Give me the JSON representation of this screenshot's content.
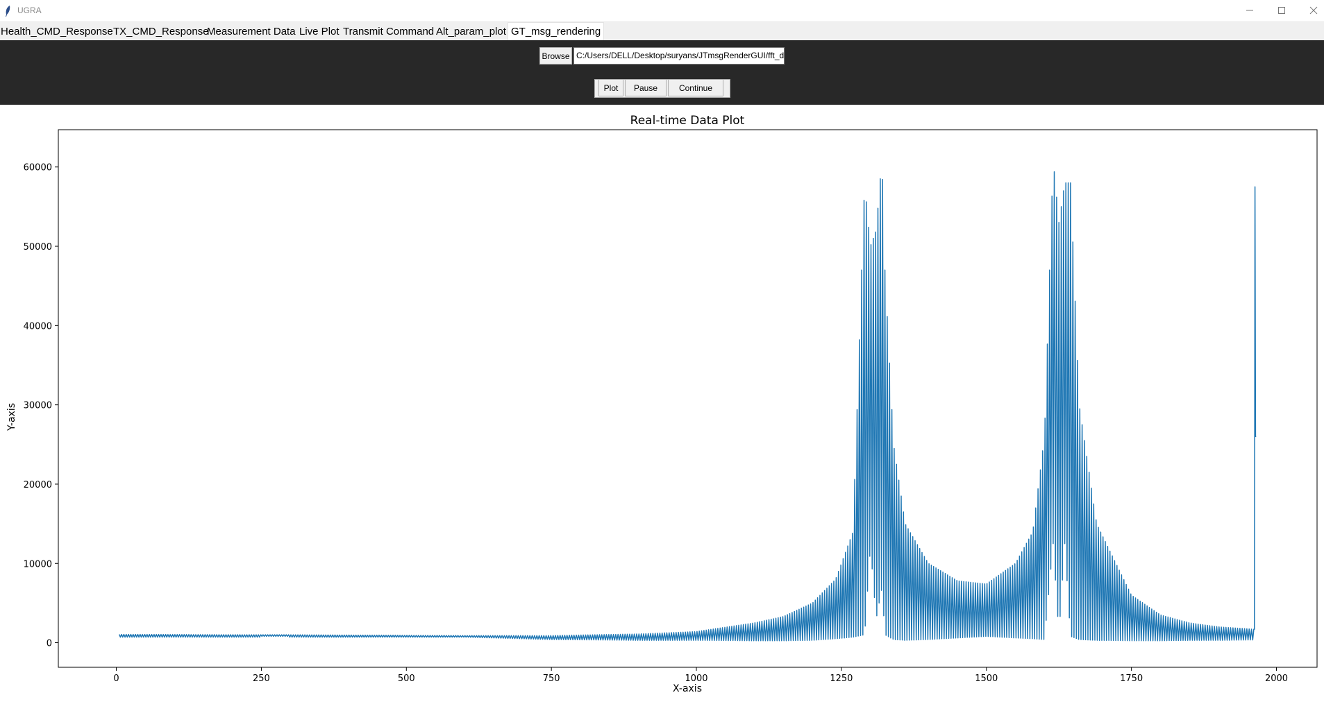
{
  "window": {
    "title": "UGRA",
    "minimize_icon": "minimize-icon",
    "maximize_icon": "maximize-icon",
    "close_icon": "close-icon"
  },
  "tabs": [
    {
      "label": "Health_CMD_Response"
    },
    {
      "label": "TX_CMD_Response"
    },
    {
      "label": "Measurement Data"
    },
    {
      "label": "Live Plot"
    },
    {
      "label": "Transmit Command"
    },
    {
      "label": "Alt_param_plot"
    },
    {
      "label": "GT_msg_rendering",
      "active": true
    }
  ],
  "toolbar": {
    "browse_label": "Browse",
    "file_path": "C:/Users/DELL/Desktop/suryans/JTmsgRenderGUI/fft_dov",
    "plot_label": "Plot",
    "pause_label": "Pause",
    "continue_label": "Continue"
  },
  "colors": {
    "toolbar_bg": "#282828",
    "line": "#1f77b4"
  },
  "chart_data": {
    "type": "line",
    "title": "Real-time Data Plot",
    "xlabel": "X-axis",
    "ylabel": "Y-axis",
    "xlim": [
      -100,
      2070
    ],
    "ylim": [
      -3100,
      64700
    ],
    "xticks": [
      0,
      250,
      500,
      750,
      1000,
      1250,
      1500,
      1750,
      2000
    ],
    "yticks": [
      0,
      10000,
      20000,
      30000,
      40000,
      50000,
      60000
    ],
    "grid": false,
    "series": [
      {
        "color": "#1f77b4",
        "x": [
          5,
          250,
          251,
          295,
          296,
          600,
          750,
          900,
          1000,
          1100,
          1150,
          1200,
          1240,
          1270,
          1290,
          1300,
          1310,
          1320,
          1325,
          1340,
          1360,
          1400,
          1450,
          1500,
          1550,
          1580,
          1600,
          1615,
          1625,
          1635,
          1645,
          1660,
          1690,
          1750,
          1800,
          1850,
          1900,
          1960,
          1962,
          1963,
          1964,
          1965
        ],
        "peak": [
          1050,
          1000,
          1000,
          1000,
          1000,
          900,
          900,
          1100,
          1400,
          2500,
          3300,
          5000,
          8000,
          14000,
          58000,
          50000,
          52000,
          61300,
          47000,
          25000,
          15000,
          10000,
          7800,
          7400,
          10000,
          14000,
          26000,
          61000,
          53000,
          58000,
          58000,
          30000,
          15000,
          6000,
          3500,
          2500,
          2000,
          1700,
          1700,
          57500,
          26000,
          26000
        ],
        "trough": [
          700,
          700,
          800,
          800,
          700,
          700,
          400,
          300,
          300,
          250,
          250,
          300,
          500,
          700,
          1000,
          12000,
          3000,
          7000,
          1000,
          400,
          300,
          400,
          600,
          800,
          600,
          500,
          400,
          12500,
          1000,
          12500,
          800,
          400,
          300,
          250,
          250,
          300,
          300,
          350,
          1200,
          1200,
          1200,
          26000
        ]
      }
    ]
  }
}
